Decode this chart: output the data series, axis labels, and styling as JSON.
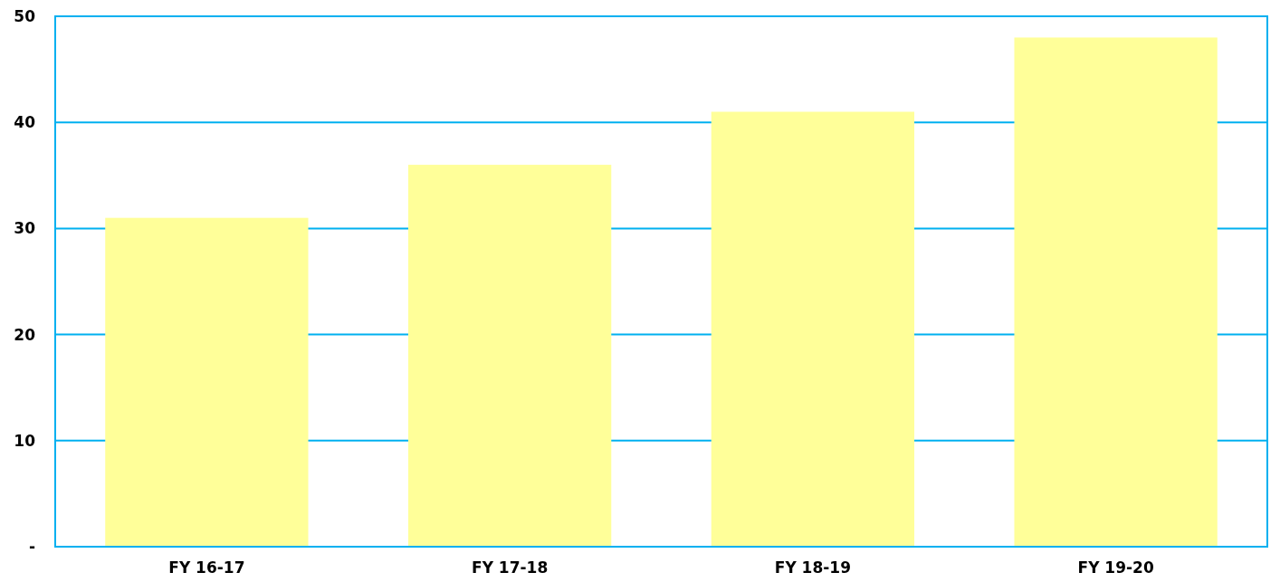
{
  "chart_data": {
    "type": "bar",
    "categories": [
      "FY 16-17",
      "FY 17-18",
      "FY 18-19",
      "FY 19-20"
    ],
    "values": [
      31,
      36,
      41,
      48
    ],
    "color": "#ffff99",
    "ylim": [
      0,
      50
    ],
    "yticks": [
      {
        "value": 0,
        "label": "-"
      },
      10,
      20,
      30,
      40,
      50
    ],
    "grid": "y"
  }
}
